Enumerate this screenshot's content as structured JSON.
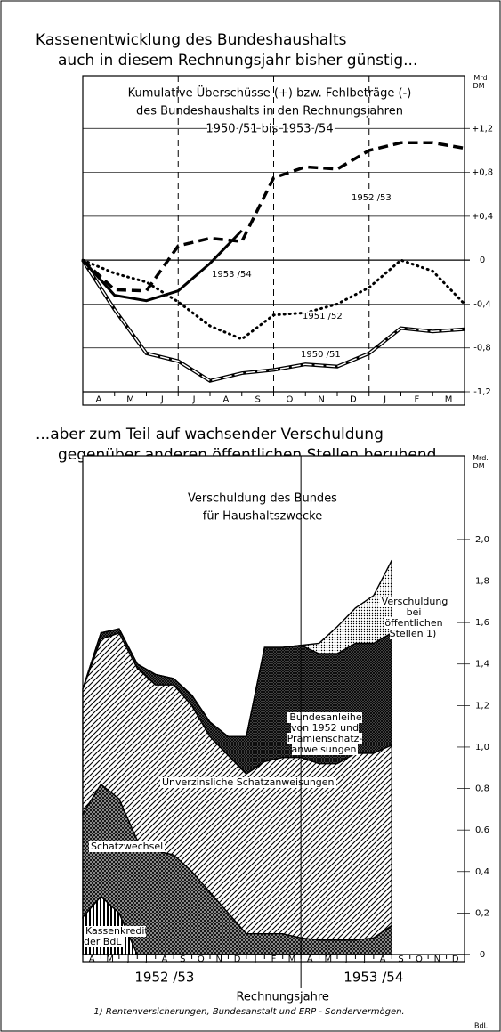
{
  "charts": [
    {
      "chart_data": {
        "type": "line",
        "title": [
          "Kassenentwicklung des Bundeshaushalts",
          "auch in diesem Rechnungsjahr bisher günstig..."
        ],
        "subtitle": [
          "Kumulative Überschüsse (+) bzw. Fehlbeträge (-)",
          "des Bundeshaushalts in den Rechnungsjahren",
          "1950 /51  bis 1953 /54"
        ],
        "ylabel": "Mrd\nDM",
        "categories": [
          "A",
          "M",
          "J",
          "J",
          "A",
          "S",
          "O",
          "N",
          "D",
          "J",
          "F",
          "M"
        ],
        "x": [
          0,
          1,
          2,
          3,
          4,
          5,
          6,
          7,
          8,
          9,
          10,
          11,
          12
        ],
        "xlim": [
          0,
          12
        ],
        "ylim": [
          -1.2,
          1.6
        ],
        "yticks": [
          {
            "value": 1.2,
            "label": "+1,2"
          },
          {
            "value": 0.8,
            "label": "+0,8"
          },
          {
            "value": 0.4,
            "label": "+0,4"
          },
          0,
          {
            "value": -0.4,
            "label": "-0,4"
          },
          {
            "value": -0.8,
            "label": "-0,8"
          },
          {
            "value": -1.2,
            "label": "-1,2"
          }
        ],
        "grid": true,
        "series": [
          {
            "name": "1950 /51",
            "color": "#000000",
            "style": "double",
            "values": [
              0,
              -0.45,
              -0.85,
              -0.92,
              -1.1,
              -1.03,
              -1.0,
              -0.95,
              -0.97,
              -0.85,
              -0.62,
              -0.65,
              -0.63
            ]
          },
          {
            "name": "1951 /52",
            "color": "#000000",
            "style": "dotted",
            "values": [
              0,
              -0.12,
              -0.2,
              -0.38,
              -0.6,
              -0.72,
              -0.5,
              -0.48,
              -0.4,
              -0.25,
              0,
              -0.1,
              -0.4
            ]
          },
          {
            "name": "1952 /53",
            "color": "#000000",
            "style": "dashed",
            "values": [
              0,
              -0.27,
              -0.28,
              0.13,
              0.2,
              0.17,
              0.75,
              0.85,
              0.83,
              1.0,
              1.07,
              1.07,
              1.02
            ]
          },
          {
            "name": "1953 /54",
            "color": "#000000",
            "style": "solid",
            "values": [
              0,
              -0.32,
              -0.37,
              -0.28,
              -0.03,
              0.27,
              null,
              null,
              null,
              null,
              null,
              null,
              null
            ]
          }
        ]
      }
    },
    {
      "chart_data": {
        "type": "stacked_area",
        "title": [
          "...aber zum Teil auf wachsender Verschuldung",
          "gegenüber anderen öffentlichen Stellen beruhend"
        ],
        "subtitle": [
          "Verschuldung des Bundes",
          "für Haushaltszwecke"
        ],
        "ylabel": "Mrd.\nDM",
        "xlabel": "Rechnungsjahre",
        "year_labels": [
          "1952 /53",
          "1953 /54"
        ],
        "categories": [
          "A",
          "M",
          "J",
          "J",
          "A",
          "S",
          "O",
          "N",
          "D",
          "J",
          "F",
          "M",
          "A",
          "M",
          "J",
          "J",
          "A",
          "S",
          "O",
          "N",
          "D"
        ],
        "x": [
          0,
          1,
          2,
          3,
          4,
          5,
          6,
          7,
          8,
          9,
          10,
          11,
          12,
          13,
          14,
          15,
          16,
          17
        ],
        "xlim": [
          0,
          21
        ],
        "ylim": [
          0,
          2.36
        ],
        "yticks": [
          {
            "value": 2.0,
            "label": "2,0"
          },
          {
            "value": 1.8,
            "label": "1,8"
          },
          {
            "value": 1.6,
            "label": "1,6"
          },
          {
            "value": 1.4,
            "label": "1,4"
          },
          {
            "value": 1.2,
            "label": "1,2"
          },
          {
            "value": 1.0,
            "label": "1,0"
          },
          {
            "value": 0.8,
            "label": "0,8"
          },
          {
            "value": 0.6,
            "label": "0,6"
          },
          {
            "value": 0.4,
            "label": "0,4"
          },
          {
            "value": 0.2,
            "label": "0,2"
          },
          0
        ],
        "series": [
          {
            "name": "Kassenkredite\nder BdL",
            "color": "#000000",
            "pattern": "vertical",
            "values": [
              0.18,
              0.28,
              0.2,
              0,
              0,
              0,
              0,
              0,
              0,
              0,
              0,
              0,
              0,
              0,
              0,
              0,
              0,
              0
            ]
          },
          {
            "name": "Schatzwechsel",
            "color": "#000000",
            "pattern": "crosshatch",
            "values": [
              0.5,
              0.54,
              0.55,
              0.55,
              0.5,
              0.48,
              0.4,
              0.3,
              0.2,
              0.1,
              0.1,
              0.1,
              0.08,
              0.07,
              0.07,
              0.07,
              0.08,
              0.14
            ]
          },
          {
            "name": "Unverzinsliche Schatzanweisungen",
            "color": "#000000",
            "pattern": "diagonal",
            "values": [
              0.6,
              0.7,
              0.8,
              0.83,
              0.8,
              0.82,
              0.8,
              0.75,
              0.76,
              0.77,
              0.83,
              0.85,
              0.87,
              0.85,
              0.85,
              0.9,
              0.89,
              0.87
            ]
          },
          {
            "name": "Bundesanleihe\nvon 1952 und\nPrämienschatz-\nanweisungen",
            "color": "#000000",
            "pattern": "dense",
            "values": [
              0,
              0.03,
              0.02,
              0.02,
              0.05,
              0.03,
              0.05,
              0.07,
              0.09,
              0.18,
              0.55,
              0.53,
              0.54,
              0.53,
              0.53,
              0.53,
              0.53,
              0.54
            ]
          },
          {
            "name": "Verschuldung\nbei öffentlichen\nStellen 1)",
            "color": "#000000",
            "pattern": "dots",
            "values": [
              0,
              0,
              0,
              0,
              0,
              0,
              0,
              0,
              0,
              0,
              0,
              0,
              0,
              0.05,
              0.13,
              0.17,
              0.23,
              0.35
            ]
          }
        ]
      }
    }
  ],
  "footnote": "1) Rentenversicherungen, Bundesanstalt und ERP - Sondervermögen.",
  "source": "BdL"
}
